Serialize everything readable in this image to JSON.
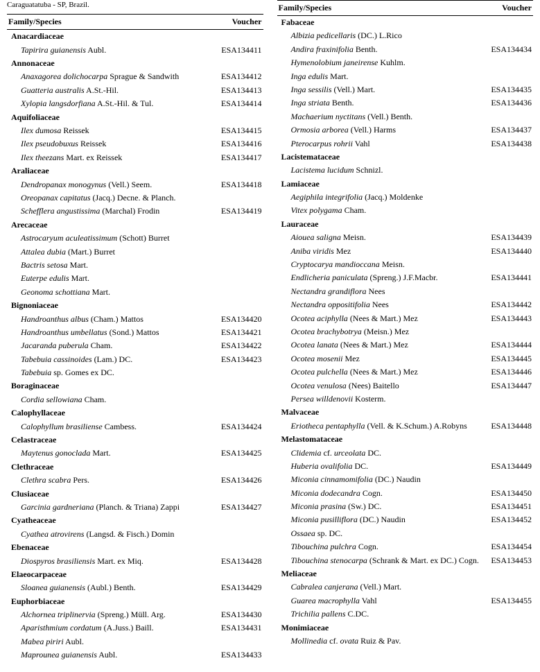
{
  "caption": "Caraguatatuba - SP, Brazil.",
  "header": {
    "family_species": "Family/Species",
    "voucher": "Voucher"
  },
  "left": [
    {
      "type": "family",
      "name": "Anacardiaceae"
    },
    {
      "type": "species",
      "name": "Tapirira guianensis",
      "auth": " Aubl.",
      "voucher": "ESA134411"
    },
    {
      "type": "family",
      "name": "Annonaceae"
    },
    {
      "type": "species",
      "name": "Anaxagorea dolichocarpa",
      "auth": " Sprague & Sandwith",
      "voucher": "ESA134412"
    },
    {
      "type": "species",
      "name": "Guatteria australis",
      "auth": " A.St.-Hil.",
      "voucher": "ESA134413"
    },
    {
      "type": "species",
      "name": "Xylopia langsdorfiana",
      "auth": " A.St.-Hil. & Tul.",
      "voucher": "ESA134414"
    },
    {
      "type": "family",
      "name": "Aquifoliaceae"
    },
    {
      "type": "species",
      "name": "Ilex dumosa",
      "auth": " Reissek",
      "voucher": "ESA134415"
    },
    {
      "type": "species",
      "name": "Ilex pseudobuxus",
      "auth": " Reissek",
      "voucher": "ESA134416"
    },
    {
      "type": "species",
      "name": "Ilex theezans",
      "auth": " Mart. ex Reissek",
      "voucher": "ESA134417"
    },
    {
      "type": "family",
      "name": "Araliaceae"
    },
    {
      "type": "species",
      "name": "Dendropanax monogynus",
      "auth": " (Vell.) Seem.",
      "voucher": "ESA134418"
    },
    {
      "type": "species",
      "name": "Oreopanax capitatus",
      "auth": " (Jacq.) Decne. & Planch.",
      "voucher": ""
    },
    {
      "type": "species",
      "name": "Schefflera angustissima",
      "auth": " (Marchal) Frodin",
      "voucher": "ESA134419"
    },
    {
      "type": "family",
      "name": "Arecaceae"
    },
    {
      "type": "species",
      "name": "Astrocaryum aculeatissimum",
      "auth": " (Schott) Burret",
      "voucher": ""
    },
    {
      "type": "species",
      "name": "Attalea dubia",
      "auth": " (Mart.) Burret",
      "voucher": ""
    },
    {
      "type": "species",
      "name": "Bactris setosa",
      "auth": " Mart.",
      "voucher": ""
    },
    {
      "type": "species",
      "name": "Euterpe edulis",
      "auth": " Mart.",
      "voucher": ""
    },
    {
      "type": "species",
      "name": "Geonoma schottiana",
      "auth": " Mart.",
      "voucher": ""
    },
    {
      "type": "family",
      "name": "Bignoniaceae"
    },
    {
      "type": "species",
      "name": "Handroanthus albus",
      "auth": " (Cham.) Mattos",
      "voucher": "ESA134420"
    },
    {
      "type": "species",
      "name": "Handroanthus umbellatus",
      "auth": " (Sond.) Mattos",
      "voucher": "ESA134421"
    },
    {
      "type": "species",
      "name": "Jacaranda puberula",
      "auth": " Cham.",
      "voucher": "ESA134422"
    },
    {
      "type": "species",
      "name": "Tabebuia cassinoides",
      "auth": " (Lam.) DC.",
      "voucher": "ESA134423"
    },
    {
      "type": "species",
      "name": "Tabebuia",
      "auth": " sp. Gomes ex DC.",
      "voucher": ""
    },
    {
      "type": "family",
      "name": "Boraginaceae"
    },
    {
      "type": "species",
      "name": "Cordia sellowiana",
      "auth": " Cham.",
      "voucher": ""
    },
    {
      "type": "family",
      "name": "Calophyllaceae"
    },
    {
      "type": "species",
      "name": "Calophyllum brasiliense",
      "auth": " Cambess.",
      "voucher": "ESA134424"
    },
    {
      "type": "family",
      "name": "Celastraceae"
    },
    {
      "type": "species",
      "name": "Maytenus gonoclada",
      "auth": " Mart.",
      "voucher": "ESA134425"
    },
    {
      "type": "family",
      "name": "Clethraceae"
    },
    {
      "type": "species",
      "name": "Clethra scabra",
      "auth": " Pers.",
      "voucher": "ESA134426"
    },
    {
      "type": "family",
      "name": "Clusiaceae"
    },
    {
      "type": "species",
      "name": "Garcinia gardneriana",
      "auth": " (Planch. & Triana) Zappi",
      "voucher": "ESA134427"
    },
    {
      "type": "family",
      "name": "Cyatheaceae"
    },
    {
      "type": "species",
      "name": "Cyathea atrovirens",
      "auth": " (Langsd. & Fisch.) Domin",
      "voucher": ""
    },
    {
      "type": "family",
      "name": "Ebenaceae"
    },
    {
      "type": "species",
      "name": "Diospyros brasiliensis",
      "auth": " Mart. ex Miq.",
      "voucher": "ESA134428"
    },
    {
      "type": "family",
      "name": "Elaeocarpaceae"
    },
    {
      "type": "species",
      "name": "Sloanea guianensis",
      "auth": " (Aubl.) Benth.",
      "voucher": "ESA134429"
    },
    {
      "type": "family",
      "name": "Euphorbiaceae"
    },
    {
      "type": "species",
      "name": "Alchornea triplinervia",
      "auth": " (Spreng.) Müll. Arg.",
      "voucher": "ESA134430"
    },
    {
      "type": "species",
      "name": "Aparisthmium cordatum",
      "auth": " (A.Juss.) Baill.",
      "voucher": "ESA134431"
    },
    {
      "type": "species",
      "name": "Mabea piriri",
      "auth": " Aubl.",
      "voucher": ""
    },
    {
      "type": "species",
      "name": "Maprounea guianensis",
      "auth": " Aubl.",
      "voucher": "ESA134433"
    }
  ],
  "right": [
    {
      "type": "family",
      "name": "Fabaceae"
    },
    {
      "type": "species",
      "name": "Albizia pedicellaris",
      "auth": " (DC.) L.Rico",
      "voucher": ""
    },
    {
      "type": "species",
      "name": "Andira fraxinifolia",
      "auth": " Benth.",
      "voucher": "ESA134434"
    },
    {
      "type": "species",
      "name": "Hymenolobium janeirense",
      "auth": " Kuhlm.",
      "voucher": ""
    },
    {
      "type": "species",
      "name": "Inga edulis",
      "auth": " Mart.",
      "voucher": ""
    },
    {
      "type": "species",
      "name": "Inga sessilis",
      "auth": " (Vell.) Mart.",
      "voucher": "ESA134435"
    },
    {
      "type": "species",
      "name": "Inga striata",
      "auth": " Benth.",
      "voucher": "ESA134436"
    },
    {
      "type": "species",
      "name": "Machaerium nyctitans",
      "auth": " (Vell.) Benth.",
      "voucher": ""
    },
    {
      "type": "species",
      "name": "Ormosia arborea",
      "auth": " (Vell.) Harms",
      "voucher": "ESA134437"
    },
    {
      "type": "species",
      "name": "Pterocarpus rohrii",
      "auth": " Vahl",
      "voucher": "ESA134438"
    },
    {
      "type": "family",
      "name": "Lacistemataceae"
    },
    {
      "type": "species",
      "name": "Lacistema lucidum",
      "auth": " Schnizl.",
      "voucher": ""
    },
    {
      "type": "family",
      "name": "Lamiaceae"
    },
    {
      "type": "species",
      "name": "Aegiphila integrifolia",
      "auth": " (Jacq.) Moldenke",
      "voucher": ""
    },
    {
      "type": "species",
      "name": "Vitex polygama",
      "auth": " Cham.",
      "voucher": ""
    },
    {
      "type": "family",
      "name": "Lauraceae"
    },
    {
      "type": "species",
      "name": "Aiouea saligna",
      "auth": " Meisn.",
      "voucher": "ESA134439"
    },
    {
      "type": "species",
      "name": "Aniba viridis",
      "auth": " Mez",
      "voucher": "ESA134440"
    },
    {
      "type": "species",
      "name": "Cryptocarya mandioccana",
      "auth": " Meisn.",
      "voucher": ""
    },
    {
      "type": "species",
      "name": "Endlicheria paniculata",
      "auth": " (Spreng.) J.F.Macbr.",
      "voucher": "ESA134441"
    },
    {
      "type": "species",
      "name": "Nectandra grandiflora",
      "auth": " Nees",
      "voucher": ""
    },
    {
      "type": "species",
      "name": "Nectandra oppositifolia",
      "auth": " Nees",
      "voucher": "ESA134442"
    },
    {
      "type": "species",
      "name": "Ocotea aciphylla",
      "auth": " (Nees & Mart.) Mez",
      "voucher": "ESA134443"
    },
    {
      "type": "species",
      "name": "Ocotea brachybotrya",
      "auth": " (Meisn.) Mez",
      "voucher": ""
    },
    {
      "type": "species",
      "name": "Ocotea lanata",
      "auth": " (Nees & Mart.) Mez",
      "voucher": "ESA134444"
    },
    {
      "type": "species",
      "name": "Ocotea mosenii",
      "auth": " Mez",
      "voucher": "ESA134445"
    },
    {
      "type": "species",
      "name": "Ocotea pulchella",
      "auth": " (Nees & Mart.) Mez",
      "voucher": "ESA134446"
    },
    {
      "type": "species",
      "name": "Ocotea venulosa",
      "auth": " (Nees) Baitello",
      "voucher": "ESA134447"
    },
    {
      "type": "species",
      "name": "Persea willdenovii",
      "auth": " Kosterm.",
      "voucher": ""
    },
    {
      "type": "family",
      "name": "Malvaceae"
    },
    {
      "type": "species",
      "name": "Eriotheca pentaphylla",
      "auth": " (Vell. & K.Schum.) A.Robyns",
      "voucher": "ESA134448"
    },
    {
      "type": "family",
      "name": "Melastomataceae"
    },
    {
      "type": "species",
      "name": "Clidemia",
      "auth": " cf. ",
      "name2": "urceolata",
      "auth2": " DC.",
      "voucher": ""
    },
    {
      "type": "species",
      "name": "Huberia ovalifolia",
      "auth": " DC.",
      "voucher": "ESA134449"
    },
    {
      "type": "species",
      "name": "Miconia cinnamomifolia",
      "auth": " (DC.) Naudin",
      "voucher": ""
    },
    {
      "type": "species",
      "name": "Miconia dodecandra",
      "auth": " Cogn.",
      "voucher": "ESA134450"
    },
    {
      "type": "species",
      "name": "Miconia prasina",
      "auth": " (Sw.) DC.",
      "voucher": "ESA134451"
    },
    {
      "type": "species",
      "name": "Miconia pusilliflora",
      "auth": " (DC.) Naudin",
      "voucher": "ESA134452"
    },
    {
      "type": "species",
      "name": "Ossaea",
      "auth": " sp. DC.",
      "voucher": ""
    },
    {
      "type": "species",
      "name": "Tibouchina pulchra",
      "auth": " Cogn.",
      "voucher": "ESA134454"
    },
    {
      "type": "species",
      "name": "Tibouchina stenocarpa",
      "auth": " (Schrank & Mart. ex DC.) Cogn.",
      "voucher": "ESA134453"
    },
    {
      "type": "family",
      "name": "Meliaceae"
    },
    {
      "type": "species",
      "name": "Cabralea canjerana",
      "auth": " (Vell.) Mart.",
      "voucher": ""
    },
    {
      "type": "species",
      "name": "Guarea macrophylla",
      "auth": " Vahl",
      "voucher": "ESA134455"
    },
    {
      "type": "species",
      "name": "Trichilia pallens",
      "auth": " C.DC.",
      "voucher": ""
    },
    {
      "type": "family",
      "name": "Monimiaceae"
    },
    {
      "type": "species",
      "name": "Mollinedia",
      "auth": " cf. ",
      "name2": "ovata",
      "auth2": " Ruiz & Pav.",
      "voucher": ""
    }
  ]
}
